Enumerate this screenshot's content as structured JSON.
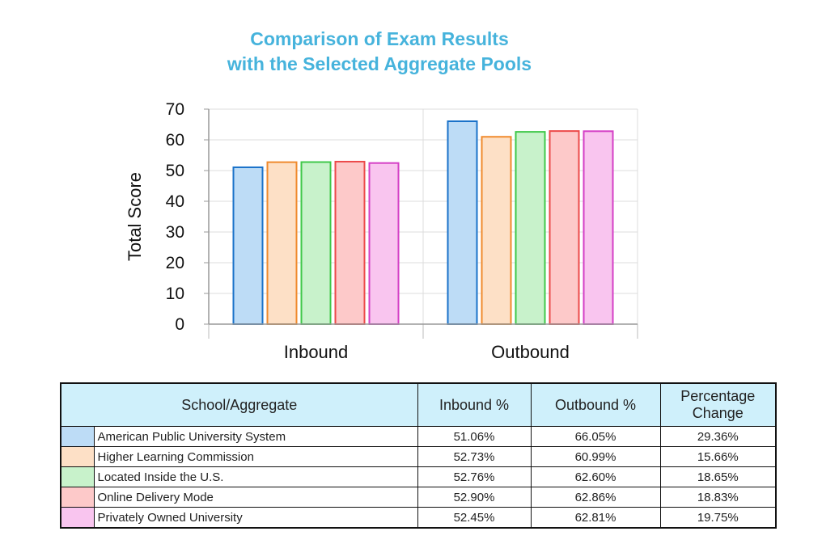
{
  "chart_data": {
    "type": "bar",
    "title": [
      "Comparison of Exam Results",
      "with the Selected Aggregate Pools"
    ],
    "xlabel": "",
    "ylabel": "Total Score",
    "ylim": [
      0,
      70
    ],
    "yticks": [
      0,
      10,
      20,
      30,
      40,
      50,
      60,
      70
    ],
    "categories": [
      "Inbound",
      "Outbound"
    ],
    "grid": true,
    "legend": "none",
    "series": [
      {
        "name": "American Public University System",
        "values": [
          51.06,
          66.05
        ],
        "fill": "#bddcf6",
        "stroke": "#1a72c9"
      },
      {
        "name": "Higher Learning Commission",
        "values": [
          52.73,
          60.99
        ],
        "fill": "#fde0c6",
        "stroke": "#f08a2c"
      },
      {
        "name": "Located Inside the U.S.",
        "values": [
          52.76,
          62.6
        ],
        "fill": "#c8f2cb",
        "stroke": "#3fc84a"
      },
      {
        "name": "Online Delivery Mode",
        "values": [
          52.9,
          62.86
        ],
        "fill": "#fdc9c9",
        "stroke": "#ec4a4a"
      },
      {
        "name": "Privately Owned University",
        "values": [
          52.45,
          62.81
        ],
        "fill": "#f9c5ef",
        "stroke": "#d43fc6"
      }
    ]
  },
  "table": {
    "headers": {
      "school": "School/Aggregate",
      "inbound": "Inbound %",
      "outbound": "Outbound %",
      "change": [
        "Percentage",
        "Change"
      ]
    },
    "rows": [
      {
        "name": "American Public University System",
        "inbound": "51.06%",
        "outbound": "66.05%",
        "change": "29.36%",
        "color": "#bddcf6"
      },
      {
        "name": "Higher Learning Commission",
        "inbound": "52.73%",
        "outbound": "60.99%",
        "change": "15.66%",
        "color": "#fde0c6"
      },
      {
        "name": "Located Inside the U.S.",
        "inbound": "52.76%",
        "outbound": "62.60%",
        "change": "18.65%",
        "color": "#c8f2cb"
      },
      {
        "name": "Online Delivery Mode",
        "inbound": "52.90%",
        "outbound": "62.86%",
        "change": "18.83%",
        "color": "#fdc9c9"
      },
      {
        "name": "Privately Owned University",
        "inbound": "52.45%",
        "outbound": "62.81%",
        "change": "19.75%",
        "color": "#f9c5ef"
      }
    ]
  }
}
